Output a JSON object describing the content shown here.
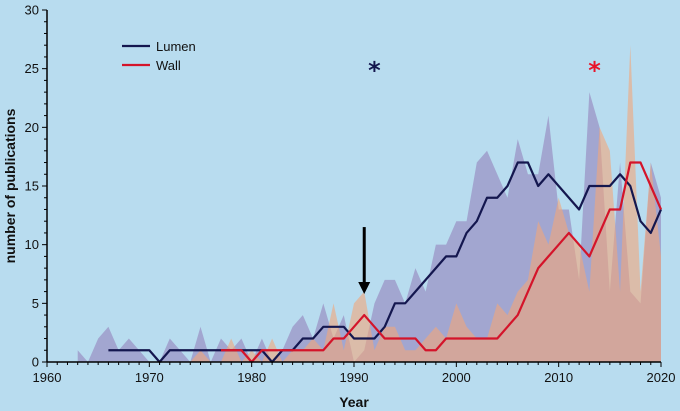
{
  "chart_data": {
    "type": "line",
    "xlabel": "Year",
    "ylabel": "number of publications",
    "xlim": [
      1960,
      2020
    ],
    "ylim": [
      0,
      30
    ],
    "xticks": [
      1960,
      1970,
      1980,
      1990,
      2000,
      2010,
      2020
    ],
    "yticks": [
      0,
      5,
      10,
      15,
      20,
      25,
      30
    ],
    "grid": false,
    "legend_position": "top-left",
    "series": [
      {
        "name": "Lumen",
        "color": "#14174f",
        "band_color": "#9b94c6",
        "x": [
          1966,
          1967,
          1968,
          1969,
          1970,
          1971,
          1972,
          1973,
          1974,
          1975,
          1976,
          1977,
          1978,
          1979,
          1980,
          1981,
          1982,
          1983,
          1984,
          1985,
          1986,
          1987,
          1988,
          1989,
          1990,
          1991,
          1992,
          1993,
          1994,
          1995,
          1996,
          1997,
          1998,
          1999,
          2000,
          2001,
          2002,
          2003,
          2004,
          2005,
          2006,
          2007,
          2008,
          2009,
          2010,
          2011,
          2012,
          2013,
          2014,
          2015,
          2016,
          2017,
          2018,
          2019,
          2020
        ],
        "values": [
          1,
          1,
          1,
          1,
          1,
          0,
          1,
          1,
          1,
          1,
          1,
          1,
          1,
          1,
          1,
          1,
          0,
          1,
          1,
          2,
          2,
          3,
          3,
          3,
          2,
          2,
          2,
          3,
          5,
          5,
          6,
          7,
          8,
          9,
          9,
          11,
          12,
          14,
          14,
          15,
          17,
          17,
          15,
          16,
          15,
          14,
          13,
          15,
          15,
          15,
          16,
          15,
          12,
          11,
          13
        ],
        "band_x": [
          1963,
          1964,
          1965,
          1966,
          1967,
          1968,
          1969,
          1970,
          1971,
          1972,
          1973,
          1974,
          1975,
          1976,
          1977,
          1978,
          1979,
          1980,
          1981,
          1982,
          1983,
          1984,
          1985,
          1986,
          1987,
          1988,
          1989,
          1990,
          1991,
          1992,
          1993,
          1994,
          1995,
          1996,
          1997,
          1998,
          1999,
          2000,
          2001,
          2002,
          2003,
          2004,
          2005,
          2006,
          2007,
          2008,
          2009,
          2010,
          2011,
          2012,
          2013,
          2014,
          2015,
          2016,
          2017,
          2018,
          2019,
          2020
        ],
        "band_values": [
          1,
          0,
          2,
          3,
          1,
          2,
          1,
          0,
          0,
          2,
          1,
          0,
          3,
          0,
          2,
          1,
          2,
          0,
          2,
          0,
          1,
          3,
          4,
          2,
          5,
          2,
          4,
          0,
          1,
          5,
          7,
          7,
          5,
          8,
          6,
          10,
          10,
          12,
          12,
          17,
          18,
          16,
          14,
          19,
          16,
          16,
          21,
          13,
          13,
          7,
          23,
          20,
          6,
          17,
          6,
          5,
          17,
          14
        ]
      },
      {
        "name": "Wall",
        "color": "#d4142a",
        "band_color": "#f2a77a",
        "x": [
          1977,
          1978,
          1979,
          1980,
          1981,
          1982,
          1983,
          1984,
          1985,
          1986,
          1987,
          1988,
          1989,
          1990,
          1991,
          1992,
          1993,
          1994,
          1995,
          1996,
          1997,
          1998,
          1999,
          2000,
          2001,
          2002,
          2003,
          2004,
          2005,
          2006,
          2007,
          2008,
          2009,
          2010,
          2011,
          2012,
          2013,
          2014,
          2015,
          2016,
          2017,
          2018,
          2019,
          2020
        ],
        "values": [
          1,
          1,
          1,
          0,
          1,
          1,
          1,
          1,
          1,
          1,
          1,
          2,
          2,
          3,
          4,
          3,
          2,
          2,
          2,
          2,
          1,
          1,
          2,
          2,
          2,
          2,
          2,
          2,
          3,
          4,
          6,
          8,
          9,
          10,
          11,
          10,
          9,
          11,
          13,
          13,
          17,
          17,
          15,
          13
        ],
        "band_x": [
          1974,
          1975,
          1976,
          1977,
          1978,
          1979,
          1980,
          1981,
          1982,
          1983,
          1984,
          1985,
          1986,
          1987,
          1988,
          1989,
          1990,
          1991,
          1992,
          1993,
          1994,
          1995,
          1996,
          1997,
          1998,
          1999,
          2000,
          2001,
          2002,
          2003,
          2004,
          2005,
          2006,
          2007,
          2008,
          2009,
          2010,
          2011,
          2012,
          2013,
          2014,
          2015,
          2016,
          2017,
          2018,
          2019,
          2020
        ],
        "band_values": [
          0,
          1,
          0,
          0,
          2,
          0,
          1,
          0,
          2,
          0,
          1,
          1,
          2,
          1,
          5,
          1,
          5,
          6,
          1,
          3,
          3,
          1,
          1,
          2,
          3,
          2,
          5,
          3,
          2,
          2,
          5,
          4,
          6,
          7,
          12,
          10,
          14,
          11,
          10,
          6,
          20,
          18,
          6,
          27,
          6,
          17,
          9
        ]
      }
    ],
    "annotations": {
      "lumen_star": {
        "text": "*",
        "color": "#14174f",
        "x": 1992,
        "y": 25
      },
      "wall_star": {
        "text": "*",
        "color": "#e8142a",
        "x": 2013.5,
        "y": 25
      },
      "arrow": {
        "x": 1991,
        "y_from": 11.5,
        "y_to": 5.8
      }
    }
  }
}
